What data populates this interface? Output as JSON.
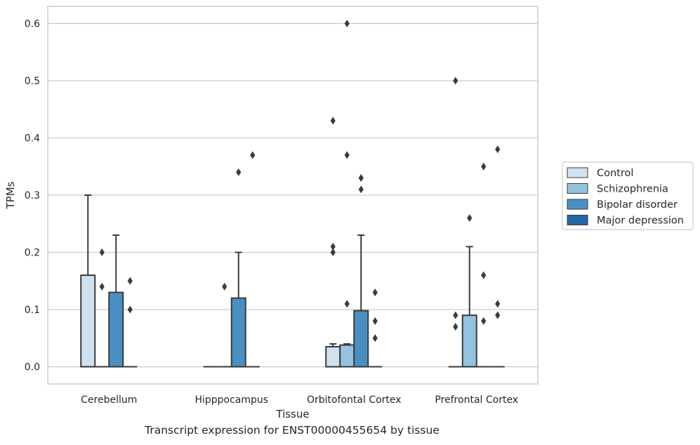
{
  "caption": "Transcript expression for ENST00000455654 by tissue",
  "chart_data": {
    "type": "box",
    "title": "",
    "xlabel": "Tissue",
    "ylabel": "TPMs",
    "ylim": [
      -0.03,
      0.63
    ],
    "yticks": [
      0.0,
      0.1,
      0.2,
      0.3,
      0.4,
      0.5,
      0.6
    ],
    "ytick_labels": [
      "0.0",
      "0.1",
      "0.2",
      "0.3",
      "0.4",
      "0.5",
      "0.6"
    ],
    "grid": "horizontal",
    "legend_position": "right, outside plot",
    "categories": [
      "Cerebellum",
      "Hipppocampus",
      "Orbitofontal Cortex",
      "Prefrontal Cortex"
    ],
    "series": [
      {
        "name": "Control",
        "color": "#d0e1f0",
        "boxes": [
          {
            "q1": 0.0,
            "median": 0.0,
            "q3": 0.16,
            "whisker_low": 0.0,
            "whisker_high": 0.3,
            "outliers": []
          },
          {
            "q1": 0.0,
            "median": 0.0,
            "q3": 0.0,
            "whisker_low": 0.0,
            "whisker_high": 0.0,
            "outliers": []
          },
          {
            "q1": 0.0,
            "median": 0.0,
            "q3": 0.035,
            "whisker_low": 0.0,
            "whisker_high": 0.04,
            "outliers": [
              0.2,
              0.21,
              0.43
            ]
          },
          {
            "q1": 0.0,
            "median": 0.0,
            "q3": 0.0,
            "whisker_low": 0.0,
            "whisker_high": 0.0,
            "outliers": [
              0.07,
              0.09,
              0.5
            ]
          }
        ]
      },
      {
        "name": "Schizophrenia",
        "color": "#93c3df",
        "boxes": [
          {
            "q1": 0.0,
            "median": 0.0,
            "q3": 0.0,
            "whisker_low": 0.0,
            "whisker_high": 0.0,
            "outliers": [
              0.14,
              0.2
            ]
          },
          {
            "q1": 0.0,
            "median": 0.0,
            "q3": 0.0,
            "whisker_low": 0.0,
            "whisker_high": 0.0,
            "outliers": [
              0.14
            ]
          },
          {
            "q1": 0.0,
            "median": 0.0,
            "q3": 0.038,
            "whisker_low": 0.0,
            "whisker_high": 0.04,
            "outliers": [
              0.11,
              0.37,
              0.6
            ]
          },
          {
            "q1": 0.0,
            "median": 0.0,
            "q3": 0.09,
            "whisker_low": 0.0,
            "whisker_high": 0.21,
            "outliers": [
              0.26
            ]
          }
        ]
      },
      {
        "name": "Bipolar disorder",
        "color": "#4a8fc2",
        "boxes": [
          {
            "q1": 0.0,
            "median": 0.0,
            "q3": 0.13,
            "whisker_low": 0.0,
            "whisker_high": 0.23,
            "outliers": []
          },
          {
            "q1": 0.0,
            "median": 0.0,
            "q3": 0.12,
            "whisker_low": 0.0,
            "whisker_high": 0.2,
            "outliers": [
              0.34
            ]
          },
          {
            "q1": 0.0,
            "median": 0.0,
            "q3": 0.098,
            "whisker_low": 0.0,
            "whisker_high": 0.23,
            "outliers": [
              0.31,
              0.33
            ]
          },
          {
            "q1": 0.0,
            "median": 0.0,
            "q3": 0.0,
            "whisker_low": 0.0,
            "whisker_high": 0.0,
            "outliers": [
              0.08,
              0.16,
              0.35
            ]
          }
        ]
      },
      {
        "name": "Major depression",
        "color": "#2566a6",
        "boxes": [
          {
            "q1": 0.0,
            "median": 0.0,
            "q3": 0.0,
            "whisker_low": 0.0,
            "whisker_high": 0.0,
            "outliers": [
              0.1,
              0.15
            ]
          },
          {
            "q1": 0.0,
            "median": 0.0,
            "q3": 0.0,
            "whisker_low": 0.0,
            "whisker_high": 0.0,
            "outliers": [
              0.37
            ]
          },
          {
            "q1": 0.0,
            "median": 0.0,
            "q3": 0.0,
            "whisker_low": 0.0,
            "whisker_high": 0.0,
            "outliers": [
              0.05,
              0.08,
              0.13
            ]
          },
          {
            "q1": 0.0,
            "median": 0.0,
            "q3": 0.0,
            "whisker_low": 0.0,
            "whisker_high": 0.0,
            "outliers": [
              0.09,
              0.11,
              0.38
            ]
          }
        ]
      }
    ]
  }
}
